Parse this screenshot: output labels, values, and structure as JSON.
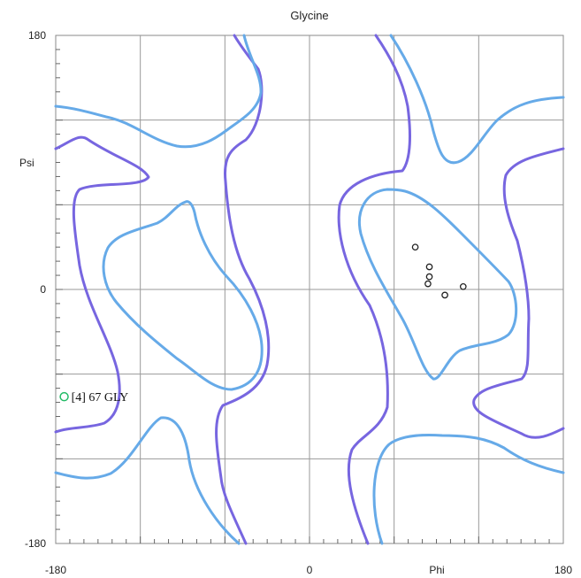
{
  "chart_data": {
    "type": "scatter",
    "title": "Glycine",
    "xlabel": "Phi",
    "ylabel": "Psi",
    "xlim": [
      -180,
      180
    ],
    "ylim": [
      -180,
      180
    ],
    "x_tick_labels": [
      "-180",
      "0",
      "180"
    ],
    "y_tick_labels": [
      "180",
      "0",
      "-180"
    ],
    "grid": true,
    "points": [
      {
        "phi": 75,
        "psi": 30
      },
      {
        "phi": 85,
        "psi": 16
      },
      {
        "phi": 85,
        "psi": 9
      },
      {
        "phi": 84,
        "psi": 4
      },
      {
        "phi": 96,
        "psi": -4
      },
      {
        "phi": 109,
        "psi": 2
      }
    ],
    "outlier": {
      "phi": -174,
      "psi": -76,
      "label": "[4]   67 GLY",
      "color": "#22bb66"
    },
    "colors": {
      "allowed_contour": "#7766e0",
      "favoured_contour": "#66aae8",
      "grid": "#999999",
      "points": "#222222"
    }
  }
}
